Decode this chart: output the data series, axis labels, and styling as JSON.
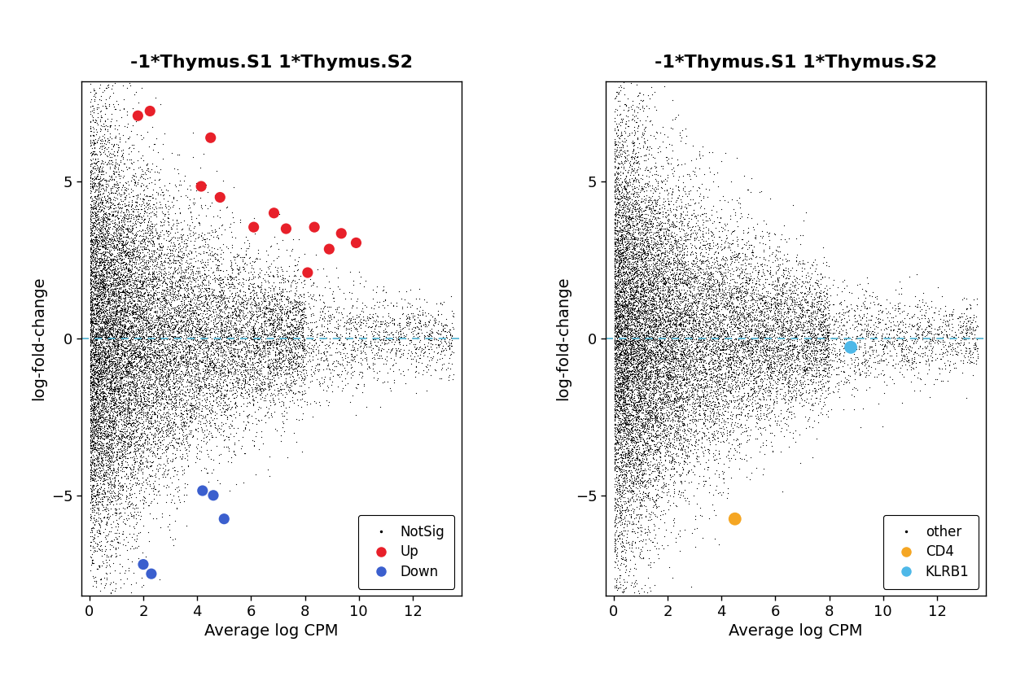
{
  "title": "-1*Thymus.S1 1*Thymus.S2",
  "xlabel": "Average log CPM",
  "ylabel": "log-fold-change",
  "xlim": [
    -0.3,
    13.8
  ],
  "ylim": [
    -8.2,
    8.2
  ],
  "xticks": [
    0,
    2,
    4,
    6,
    8,
    10,
    12
  ],
  "yticks": [
    -5,
    0,
    5
  ],
  "background_color": "#ffffff",
  "dashed_line_color": "#5bb8d4",
  "seed": 42,
  "n_background": 18000,
  "plot1": {
    "up_points": [
      [
        1.8,
        7.1
      ],
      [
        2.25,
        7.25
      ],
      [
        4.5,
        6.4
      ],
      [
        4.15,
        4.85
      ],
      [
        4.85,
        4.5
      ],
      [
        6.1,
        3.55
      ],
      [
        6.85,
        4.0
      ],
      [
        7.3,
        3.5
      ],
      [
        8.35,
        3.55
      ],
      [
        9.35,
        3.35
      ],
      [
        8.9,
        2.85
      ],
      [
        9.9,
        3.05
      ],
      [
        8.1,
        2.1
      ]
    ],
    "down_points": [
      [
        2.0,
        -7.2
      ],
      [
        2.3,
        -7.5
      ],
      [
        4.2,
        -4.85
      ],
      [
        4.6,
        -5.0
      ],
      [
        5.0,
        -5.75
      ]
    ],
    "up_color": "#e8202a",
    "down_color": "#3b5fce",
    "legend_labels": [
      "NotSig",
      "Up",
      "Down"
    ]
  },
  "plot2": {
    "cd4_point": [
      4.5,
      -5.75
    ],
    "klrb1_point": [
      8.8,
      -0.28
    ],
    "cd4_color": "#f5a623",
    "klrb1_color": "#4eb8e8",
    "legend_labels": [
      "other",
      "CD4",
      "KLRB1"
    ]
  }
}
